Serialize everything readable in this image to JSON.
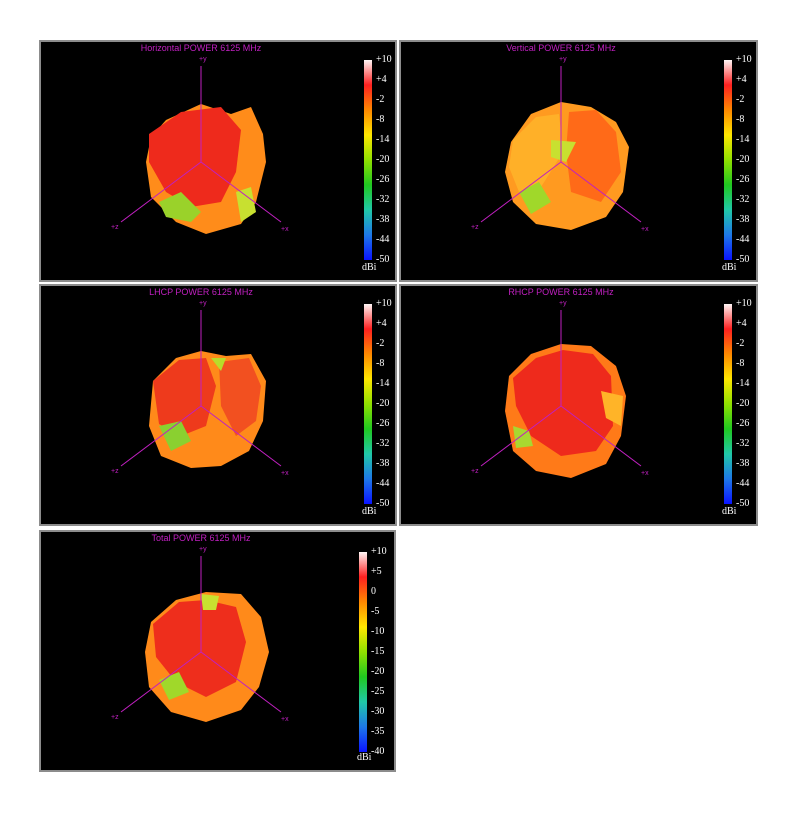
{
  "colorbar_gradient": [
    "#fff6f6",
    "#ff2020",
    "#ff8800",
    "#ffe600",
    "#90e000",
    "#20c820",
    "#20c8a8",
    "#1e78e8",
    "#0a14ff"
  ],
  "axis_labels": {
    "x": "+x",
    "y": "+y",
    "z": "+z"
  },
  "panels": [
    {
      "title": "Horizontal POWER 6125  MHz",
      "unit": "dBi",
      "ticks": [
        "+10",
        "+4",
        "-2",
        "-8",
        "-14",
        "-20",
        "-26",
        "-32",
        "-38",
        "-44",
        "-50"
      ]
    },
    {
      "title": "Vertical POWER 6125  MHz",
      "unit": "dBi",
      "ticks": [
        "+10",
        "+4",
        "-2",
        "-8",
        "-14",
        "-20",
        "-26",
        "-32",
        "-38",
        "-44",
        "-50"
      ]
    },
    {
      "title": "LHCP POWER 6125  MHz",
      "unit": "dBi",
      "ticks": [
        "+10",
        "+4",
        "-2",
        "-8",
        "-14",
        "-20",
        "-26",
        "-32",
        "-38",
        "-44",
        "-50"
      ]
    },
    {
      "title": "RHCP POWER 6125  MHz",
      "unit": "dBi",
      "ticks": [
        "+10",
        "+4",
        "-2",
        "-8",
        "-14",
        "-20",
        "-26",
        "-32",
        "-38",
        "-44",
        "-50"
      ]
    },
    {
      "title": "Total POWER 6125  MHz",
      "unit": "dBi",
      "ticks": [
        "+10",
        "+5",
        "0",
        "-5",
        "-10",
        "-15",
        "-20",
        "-25",
        "-30",
        "-35",
        "-40"
      ]
    }
  ],
  "chart_data": [
    {
      "type": "other",
      "title": "Horizontal POWER 6125  MHz",
      "colorbar_label": "dBi",
      "colorbar_range": [
        -50,
        10
      ]
    },
    {
      "type": "other",
      "title": "Vertical POWER 6125  MHz",
      "colorbar_label": "dBi",
      "colorbar_range": [
        -50,
        10
      ]
    },
    {
      "type": "other",
      "title": "LHCP POWER 6125  MHz",
      "colorbar_label": "dBi",
      "colorbar_range": [
        -50,
        10
      ]
    },
    {
      "type": "other",
      "title": "RHCP POWER 6125  MHz",
      "colorbar_label": "dBi",
      "colorbar_range": [
        -50,
        10
      ]
    },
    {
      "type": "other",
      "title": "Total POWER 6125  MHz",
      "colorbar_label": "dBi",
      "colorbar_range": [
        -40,
        10
      ]
    }
  ]
}
